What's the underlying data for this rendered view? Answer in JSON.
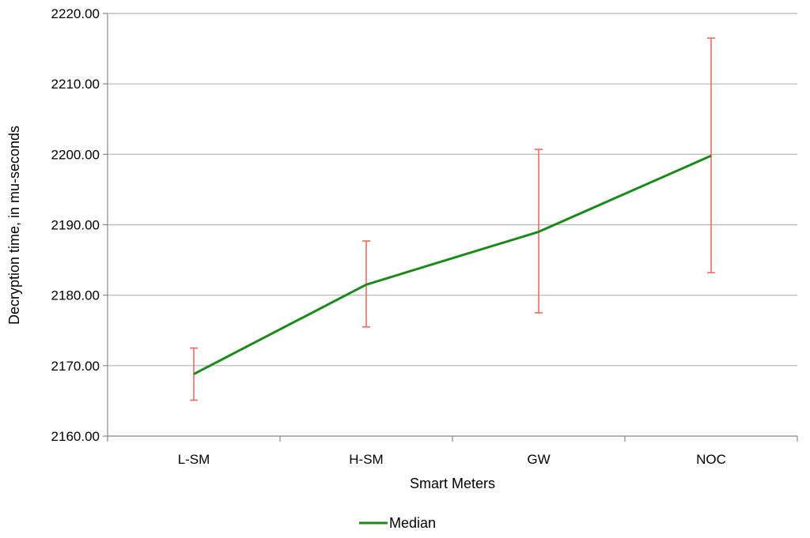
{
  "chart_data": {
    "type": "line",
    "title": "",
    "xlabel": "Smart Meters",
    "ylabel": "Decryption time, in mu-seconds",
    "categories": [
      "L-SM",
      "H-SM",
      "GW",
      "NOC"
    ],
    "ylim": [
      2160,
      2220
    ],
    "yticks": [
      2160,
      2170,
      2180,
      2190,
      2200,
      2210,
      2220
    ],
    "ytick_labels": [
      "2160.00",
      "2170.00",
      "2180.00",
      "2190.00",
      "2200.00",
      "2210.00",
      "2220.00"
    ],
    "grid": true,
    "legend_position": "bottom",
    "series": [
      {
        "name": "Median",
        "values": [
          2168.8,
          2181.5,
          2189.0,
          2199.8
        ],
        "error_low": [
          2165.1,
          2175.5,
          2177.5,
          2183.2
        ],
        "error_high": [
          2172.5,
          2187.7,
          2200.7,
          2216.5
        ],
        "color": "#1a8a1a",
        "error_color": "#f06a5a"
      }
    ]
  }
}
